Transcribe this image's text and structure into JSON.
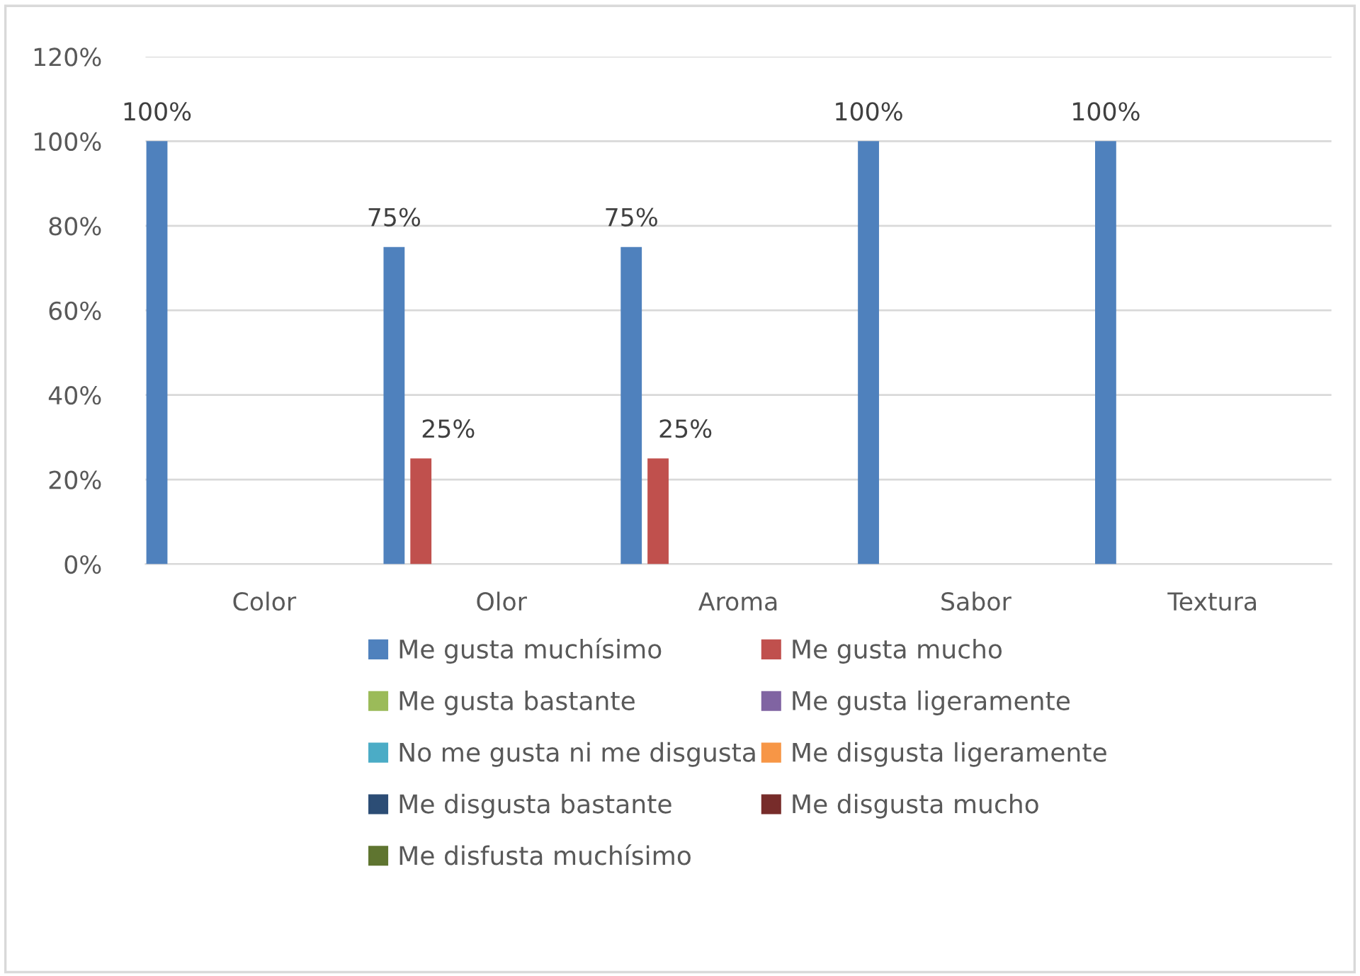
{
  "chart_data": {
    "type": "bar",
    "categories": [
      "Color",
      "Olor",
      "Aroma",
      "Sabor",
      "Textura"
    ],
    "series": [
      {
        "name": "Me gusta muchísimo",
        "color": "#4f81bd",
        "values": [
          100,
          75,
          75,
          100,
          100
        ],
        "value_labels": [
          "100%",
          "75%",
          "75%",
          "100%",
          "100%"
        ]
      },
      {
        "name": "Me gusta mucho",
        "color": "#c0504d",
        "values": [
          0,
          25,
          25,
          0,
          0
        ],
        "value_labels": [
          null,
          "25%",
          "25%",
          null,
          null
        ]
      },
      {
        "name": "Me gusta bastante",
        "color": "#9bbb59",
        "values": [
          0,
          0,
          0,
          0,
          0
        ]
      },
      {
        "name": "Me gusta ligeramente",
        "color": "#8064a2",
        "values": [
          0,
          0,
          0,
          0,
          0
        ]
      },
      {
        "name": "No me gusta ni me disgusta",
        "color": "#4bacc6",
        "values": [
          0,
          0,
          0,
          0,
          0
        ]
      },
      {
        "name": "Me disgusta ligeramente",
        "color": "#f79646",
        "values": [
          0,
          0,
          0,
          0,
          0
        ]
      },
      {
        "name": "Me disgusta bastante",
        "color": "#2c4d75",
        "values": [
          0,
          0,
          0,
          0,
          0
        ]
      },
      {
        "name": "Me disgusta mucho",
        "color": "#772c2a",
        "values": [
          0,
          0,
          0,
          0,
          0
        ]
      },
      {
        "name": "Me disfusta muchísimo",
        "color": "#5f7530",
        "values": [
          0,
          0,
          0,
          0,
          0
        ]
      }
    ],
    "ylim": [
      0,
      120
    ],
    "yticks": [
      {
        "value": 0,
        "label": "0%"
      },
      {
        "value": 20,
        "label": "20%"
      },
      {
        "value": 40,
        "label": "40%"
      },
      {
        "value": 60,
        "label": "60%"
      },
      {
        "value": 80,
        "label": "80%"
      },
      {
        "value": 100,
        "label": "100%"
      },
      {
        "value": 120,
        "label": "120%"
      }
    ],
    "grid": "y",
    "legend": "bottom"
  }
}
